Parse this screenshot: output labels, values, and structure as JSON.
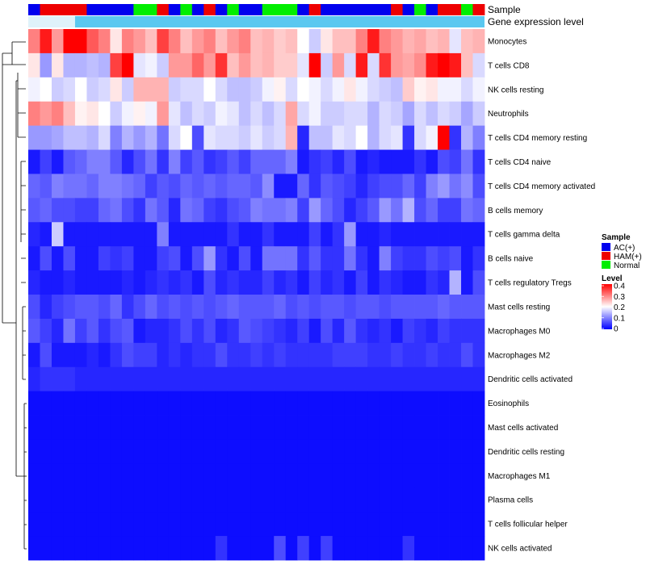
{
  "chart_data": {
    "type": "heatmap",
    "annotation_labels": {
      "sample": "Sample",
      "gene": "Gene expression level"
    },
    "legend": {
      "sample_title": "Sample",
      "groups": [
        {
          "name": "AC(+)",
          "color": "#0000ee"
        },
        {
          "name": "HAM(+)",
          "color": "#ee0000"
        },
        {
          "name": "Normal",
          "color": "#00ee00"
        }
      ],
      "level_title": "Level",
      "level_ticks": [
        "0.4",
        "0.3",
        "0.2",
        "0.1",
        "0"
      ],
      "level_range": [
        0,
        0.4
      ]
    },
    "colors": {
      "low": "#0000ff",
      "mid": "#ffffff",
      "high": "#ff0000",
      "gene_bar": "#5bc8f0"
    },
    "sample_groups": [
      0,
      1,
      1,
      1,
      1,
      0,
      0,
      0,
      0,
      2,
      2,
      1,
      0,
      2,
      0,
      1,
      0,
      2,
      0,
      0,
      2,
      2,
      2,
      0,
      1,
      0,
      0,
      0,
      0,
      0,
      0,
      1,
      0,
      2,
      0,
      1,
      1,
      2,
      1
    ],
    "rows": [
      "Monocytes",
      "T cells CD8",
      "NK cells resting",
      "Neutrophils",
      "T cells CD4 memory resting",
      "T cells CD4 naive",
      "T cells CD4 memory activated",
      "B cells memory",
      "T cells gamma delta",
      "B cells naive",
      "T cells regulatory  Tregs",
      "Mast cells resting",
      "Macrophages M0",
      "Macrophages M2",
      "Dendritic cells activated",
      "Eosinophils",
      "Mast cells activated",
      "Dendritic cells resting",
      "Macrophages M1",
      "Plasma cells",
      "T cells follicular helper",
      "NK cells activated"
    ],
    "values": [
      [
        0.3,
        0.38,
        0.28,
        0.4,
        0.4,
        0.33,
        0.3,
        0.22,
        0.3,
        0.28,
        0.25,
        0.35,
        0.3,
        0.25,
        0.28,
        0.3,
        0.25,
        0.28,
        0.3,
        0.25,
        0.26,
        0.24,
        0.25,
        0.2,
        0.16,
        0.22,
        0.25,
        0.25,
        0.3,
        0.38,
        0.3,
        0.28,
        0.26,
        0.27,
        0.25,
        0.26,
        0.18,
        0.25,
        0.26
      ],
      [
        0.22,
        0.12,
        0.22,
        0.14,
        0.14,
        0.15,
        0.14,
        0.35,
        0.4,
        0.18,
        0.19,
        0.16,
        0.28,
        0.28,
        0.32,
        0.28,
        0.36,
        0.25,
        0.28,
        0.25,
        0.26,
        0.24,
        0.24,
        0.18,
        0.4,
        0.16,
        0.28,
        0.17,
        0.38,
        0.17,
        0.36,
        0.28,
        0.27,
        0.29,
        0.38,
        0.4,
        0.38,
        0.25,
        0.17
      ],
      [
        0.19,
        0.2,
        0.16,
        0.17,
        0.2,
        0.16,
        0.17,
        0.22,
        0.16,
        0.26,
        0.26,
        0.26,
        0.16,
        0.17,
        0.17,
        0.2,
        0.17,
        0.15,
        0.15,
        0.16,
        0.19,
        0.21,
        0.17,
        0.2,
        0.19,
        0.17,
        0.19,
        0.22,
        0.19,
        0.17,
        0.16,
        0.15,
        0.24,
        0.21,
        0.22,
        0.19,
        0.19,
        0.17,
        0.19
      ],
      [
        0.3,
        0.28,
        0.3,
        0.25,
        0.21,
        0.22,
        0.2,
        0.16,
        0.19,
        0.21,
        0.19,
        0.28,
        0.18,
        0.15,
        0.17,
        0.16,
        0.19,
        0.18,
        0.15,
        0.17,
        0.15,
        0.17,
        0.27,
        0.17,
        0.19,
        0.16,
        0.16,
        0.17,
        0.17,
        0.14,
        0.17,
        0.16,
        0.13,
        0.17,
        0.15,
        0.17,
        0.16,
        0.13,
        0.16
      ],
      [
        0.12,
        0.12,
        0.13,
        0.15,
        0.15,
        0.14,
        0.17,
        0.1,
        0.14,
        0.12,
        0.14,
        0.09,
        0.17,
        0.2,
        0.06,
        0.18,
        0.17,
        0.17,
        0.16,
        0.18,
        0.16,
        0.17,
        0.26,
        0.03,
        0.15,
        0.15,
        0.18,
        0.17,
        0.2,
        0.14,
        0.17,
        0.18,
        0.04,
        0.17,
        0.19,
        0.4,
        0.04,
        0.14,
        0.1
      ],
      [
        0.02,
        0.05,
        0.02,
        0.07,
        0.08,
        0.1,
        0.1,
        0.07,
        0.03,
        0.06,
        0.09,
        0.04,
        0.1,
        0.05,
        0.07,
        0.04,
        0.05,
        0.07,
        0.05,
        0.08,
        0.08,
        0.08,
        0.1,
        0.02,
        0.04,
        0.05,
        0.03,
        0.06,
        0.02,
        0.03,
        0.02,
        0.02,
        0.02,
        0.04,
        0.02,
        0.06,
        0.05,
        0.09,
        0.04
      ],
      [
        0.08,
        0.07,
        0.1,
        0.09,
        0.09,
        0.08,
        0.1,
        0.1,
        0.09,
        0.08,
        0.05,
        0.07,
        0.06,
        0.08,
        0.07,
        0.08,
        0.07,
        0.08,
        0.08,
        0.07,
        0.11,
        0.02,
        0.02,
        0.08,
        0.04,
        0.07,
        0.06,
        0.05,
        0.03,
        0.05,
        0.06,
        0.06,
        0.08,
        0.05,
        0.1,
        0.12,
        0.09,
        0.11,
        0.06
      ],
      [
        0.07,
        0.08,
        0.06,
        0.06,
        0.05,
        0.05,
        0.08,
        0.09,
        0.06,
        0.04,
        0.09,
        0.07,
        0.03,
        0.09,
        0.08,
        0.05,
        0.04,
        0.06,
        0.07,
        0.1,
        0.09,
        0.09,
        0.1,
        0.05,
        0.12,
        0.08,
        0.06,
        0.03,
        0.05,
        0.07,
        0.12,
        0.09,
        0.14,
        0.06,
        0.08,
        0.05,
        0.05,
        0.09,
        0.08
      ],
      [
        0.03,
        0.02,
        0.16,
        0.02,
        0.02,
        0.02,
        0.02,
        0.02,
        0.02,
        0.02,
        0.02,
        0.1,
        0.02,
        0.02,
        0.02,
        0.02,
        0.02,
        0.04,
        0.02,
        0.02,
        0.04,
        0.02,
        0.02,
        0.02,
        0.05,
        0.02,
        0.04,
        0.12,
        0.02,
        0.02,
        0.03,
        0.02,
        0.02,
        0.02,
        0.02,
        0.02,
        0.02,
        0.02,
        0.02
      ],
      [
        0.02,
        0.06,
        0.02,
        0.06,
        0.02,
        0.02,
        0.05,
        0.04,
        0.05,
        0.02,
        0.02,
        0.05,
        0.06,
        0.02,
        0.06,
        0.12,
        0.04,
        0.02,
        0.06,
        0.02,
        0.09,
        0.09,
        0.09,
        0.04,
        0.07,
        0.04,
        0.04,
        0.09,
        0.04,
        0.02,
        0.1,
        0.05,
        0.04,
        0.04,
        0.06,
        0.05,
        0.06,
        0.02,
        0.04
      ],
      [
        0.03,
        0.02,
        0.02,
        0.03,
        0.02,
        0.02,
        0.02,
        0.02,
        0.03,
        0.02,
        0.03,
        0.04,
        0.03,
        0.04,
        0.02,
        0.06,
        0.03,
        0.04,
        0.03,
        0.03,
        0.05,
        0.03,
        0.04,
        0.02,
        0.05,
        0.03,
        0.04,
        0.02,
        0.05,
        0.02,
        0.04,
        0.03,
        0.02,
        0.02,
        0.04,
        0.03,
        0.14,
        0.02,
        0.06
      ],
      [
        0.06,
        0.03,
        0.05,
        0.06,
        0.07,
        0.07,
        0.06,
        0.08,
        0.04,
        0.06,
        0.08,
        0.06,
        0.07,
        0.06,
        0.07,
        0.06,
        0.07,
        0.08,
        0.07,
        0.07,
        0.07,
        0.08,
        0.06,
        0.07,
        0.06,
        0.07,
        0.07,
        0.06,
        0.07,
        0.07,
        0.06,
        0.07,
        0.07,
        0.07,
        0.07,
        0.08,
        0.07,
        0.07,
        0.07
      ],
      [
        0.07,
        0.05,
        0.03,
        0.09,
        0.05,
        0.07,
        0.04,
        0.06,
        0.07,
        0.02,
        0.03,
        0.03,
        0.04,
        0.06,
        0.04,
        0.06,
        0.03,
        0.04,
        0.07,
        0.06,
        0.05,
        0.04,
        0.03,
        0.05,
        0.02,
        0.06,
        0.03,
        0.07,
        0.04,
        0.03,
        0.04,
        0.02,
        0.05,
        0.04,
        0.03,
        0.05,
        0.04,
        0.04,
        0.04
      ],
      [
        0.02,
        0.06,
        0.02,
        0.02,
        0.02,
        0.03,
        0.02,
        0.04,
        0.06,
        0.05,
        0.05,
        0.03,
        0.04,
        0.03,
        0.04,
        0.04,
        0.06,
        0.04,
        0.04,
        0.05,
        0.04,
        0.05,
        0.04,
        0.04,
        0.04,
        0.04,
        0.05,
        0.05,
        0.05,
        0.04,
        0.04,
        0.05,
        0.04,
        0.04,
        0.05,
        0.04,
        0.04,
        0.06,
        0.04
      ],
      [
        0.03,
        0.04,
        0.04,
        0.04,
        0.03,
        0.03,
        0.03,
        0.03,
        0.03,
        0.03,
        0.03,
        0.03,
        0.03,
        0.03,
        0.03,
        0.03,
        0.03,
        0.03,
        0.03,
        0.03,
        0.03,
        0.03,
        0.03,
        0.03,
        0.03,
        0.03,
        0.03,
        0.03,
        0.03,
        0.03,
        0.03,
        0.03,
        0.03,
        0.03,
        0.03,
        0.03,
        0.03,
        0.03,
        0.03
      ],
      [
        0.01,
        0.01,
        0.01,
        0.01,
        0.01,
        0.01,
        0.01,
        0.01,
        0.01,
        0.01,
        0.01,
        0.01,
        0.01,
        0.01,
        0.01,
        0.01,
        0.01,
        0.01,
        0.01,
        0.01,
        0.01,
        0.01,
        0.01,
        0.01,
        0.01,
        0.01,
        0.01,
        0.01,
        0.01,
        0.01,
        0.01,
        0.01,
        0.01,
        0.01,
        0.01,
        0.01,
        0.01,
        0.01,
        0.01
      ],
      [
        0.01,
        0.01,
        0.01,
        0.01,
        0.01,
        0.01,
        0.01,
        0.01,
        0.01,
        0.01,
        0.01,
        0.01,
        0.01,
        0.01,
        0.01,
        0.01,
        0.01,
        0.01,
        0.01,
        0.01,
        0.01,
        0.01,
        0.01,
        0.01,
        0.01,
        0.01,
        0.01,
        0.01,
        0.01,
        0.01,
        0.01,
        0.01,
        0.01,
        0.01,
        0.01,
        0.01,
        0.01,
        0.01,
        0.01
      ],
      [
        0.01,
        0.01,
        0.01,
        0.01,
        0.01,
        0.01,
        0.01,
        0.01,
        0.01,
        0.01,
        0.01,
        0.01,
        0.01,
        0.01,
        0.01,
        0.01,
        0.01,
        0.01,
        0.01,
        0.01,
        0.01,
        0.01,
        0.01,
        0.01,
        0.01,
        0.01,
        0.01,
        0.01,
        0.01,
        0.01,
        0.01,
        0.01,
        0.01,
        0.01,
        0.01,
        0.01,
        0.01,
        0.01,
        0.01
      ],
      [
        0.01,
        0.01,
        0.01,
        0.01,
        0.01,
        0.01,
        0.01,
        0.01,
        0.01,
        0.01,
        0.01,
        0.01,
        0.01,
        0.01,
        0.01,
        0.01,
        0.01,
        0.01,
        0.01,
        0.01,
        0.01,
        0.01,
        0.01,
        0.01,
        0.01,
        0.01,
        0.01,
        0.01,
        0.01,
        0.01,
        0.01,
        0.01,
        0.01,
        0.01,
        0.01,
        0.01,
        0.01,
        0.01,
        0.01
      ],
      [
        0.01,
        0.01,
        0.01,
        0.01,
        0.01,
        0.01,
        0.01,
        0.01,
        0.01,
        0.01,
        0.01,
        0.01,
        0.01,
        0.01,
        0.01,
        0.01,
        0.01,
        0.01,
        0.01,
        0.01,
        0.01,
        0.01,
        0.01,
        0.01,
        0.01,
        0.01,
        0.01,
        0.01,
        0.01,
        0.01,
        0.01,
        0.01,
        0.01,
        0.01,
        0.01,
        0.01,
        0.01,
        0.01,
        0.01
      ],
      [
        0.01,
        0.01,
        0.01,
        0.01,
        0.01,
        0.01,
        0.01,
        0.01,
        0.01,
        0.01,
        0.01,
        0.01,
        0.01,
        0.01,
        0.01,
        0.01,
        0.01,
        0.01,
        0.01,
        0.01,
        0.01,
        0.01,
        0.01,
        0.01,
        0.01,
        0.01,
        0.01,
        0.01,
        0.01,
        0.01,
        0.01,
        0.01,
        0.01,
        0.01,
        0.01,
        0.01,
        0.01,
        0.01,
        0.01
      ],
      [
        0.01,
        0.01,
        0.01,
        0.01,
        0.01,
        0.01,
        0.01,
        0.01,
        0.01,
        0.01,
        0.01,
        0.01,
        0.01,
        0.01,
        0.01,
        0.01,
        0.04,
        0.01,
        0.01,
        0.01,
        0.01,
        0.06,
        0.01,
        0.05,
        0.01,
        0.05,
        0.01,
        0.01,
        0.01,
        0.01,
        0.01,
        0.01,
        0.04,
        0.01,
        0.01,
        0.01,
        0.01,
        0.01,
        0.01
      ]
    ]
  }
}
